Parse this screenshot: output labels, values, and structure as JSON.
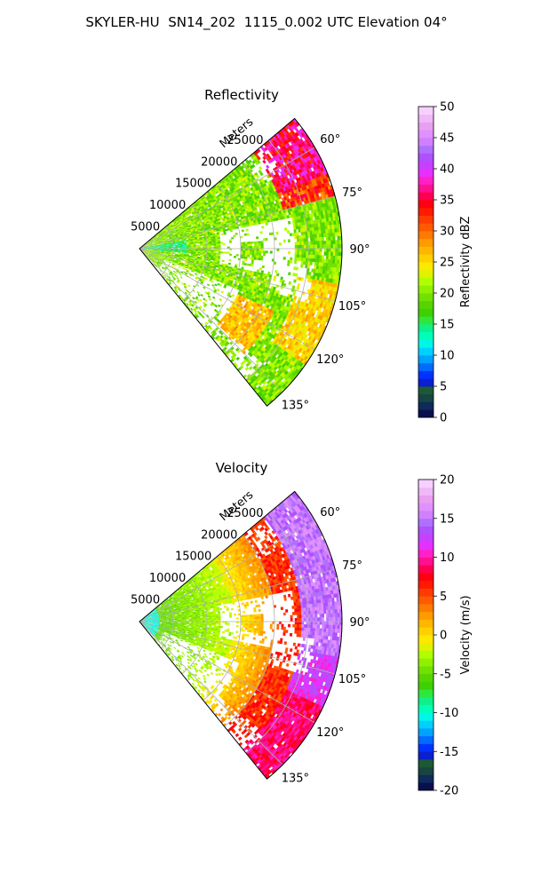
{
  "header": {
    "title": "SKYLER-HU  SN14_202  1115_0.002 UTC Elevation 04°"
  },
  "chart_data": [
    {
      "type": "heatmap",
      "subtype": "radar-sector-ppi",
      "title": "Reflectivity",
      "range_label": "Meters",
      "range_ticks": [
        5000,
        10000,
        15000,
        20000,
        25000
      ],
      "range_tick_labels": [
        "5000",
        "10000",
        "15000",
        "20000",
        "25000"
      ],
      "range_max": 30000,
      "azimuth_range_deg": [
        50,
        141
      ],
      "azimuth_ticks_deg": [
        60,
        75,
        90,
        105,
        120,
        135
      ],
      "azimuth_tick_labels": [
        "60°",
        "75°",
        "90°",
        "105°",
        "120°",
        "135°"
      ],
      "grid": true,
      "colorbar": {
        "label": "Reflectivity dBZ",
        "min": 0,
        "max": 50,
        "ticks": [
          0,
          5,
          10,
          15,
          20,
          25,
          30,
          35,
          40,
          45,
          50
        ],
        "tick_labels": [
          "0",
          "5",
          "10",
          "15",
          "20",
          "25",
          "30",
          "35",
          "40",
          "45",
          "50"
        ],
        "colors": [
          "#08114e",
          "#0f2a5c",
          "#17453f",
          "#1c5a36",
          "#0a1fd0",
          "#0032ff",
          "#006bff",
          "#00a2ff",
          "#00d0ff",
          "#00f7e8",
          "#00ffb8",
          "#10f08a",
          "#2fe63c",
          "#3ed000",
          "#55d400",
          "#72e000",
          "#8ff000",
          "#b0ff00",
          "#e0f200",
          "#ffe800",
          "#ffd000",
          "#ffb600",
          "#ff9a00",
          "#ff7a00",
          "#ff5a00",
          "#ff3c00",
          "#ff1a00",
          "#ff0010",
          "#ff0050",
          "#ff1090",
          "#ff20c8",
          "#e630ff",
          "#c840ff",
          "#b050ff",
          "#b070ff",
          "#d080ff",
          "#e090ff",
          "#e8a0f0",
          "#f0b8f8",
          "#f8d0ff"
        ]
      },
      "field_description": "mostly 15-25 dBZ echoes with a 30-40 dBZ core near 60-70° azimuth far range; missing data gaps near 80-100° mid range"
    },
    {
      "type": "heatmap",
      "subtype": "radar-sector-ppi",
      "title": "Velocity",
      "range_label": "Meters",
      "range_ticks": [
        5000,
        10000,
        15000,
        20000,
        25000
      ],
      "range_tick_labels": [
        "5000",
        "10000",
        "15000",
        "20000",
        "25000"
      ],
      "range_max": 30000,
      "azimuth_range_deg": [
        50,
        141
      ],
      "azimuth_ticks_deg": [
        60,
        75,
        90,
        105,
        120,
        135
      ],
      "azimuth_tick_labels": [
        "60°",
        "75°",
        "90°",
        "105°",
        "120°",
        "135°"
      ],
      "grid": true,
      "colorbar": {
        "label": "Velocity (m/s)",
        "min": -20,
        "max": 20,
        "ticks": [
          -20,
          -15,
          -10,
          -5,
          0,
          5,
          10,
          15,
          20
        ],
        "tick_labels": [
          "-20",
          "-15",
          "-10",
          "-5",
          "0",
          "5",
          "10",
          "15",
          "20"
        ],
        "colors": [
          "#08114e",
          "#0f2a5c",
          "#17453f",
          "#1c5a36",
          "#0a1fd0",
          "#0032ff",
          "#006bff",
          "#00a2ff",
          "#00d0ff",
          "#00f7e8",
          "#00ffb8",
          "#10f08a",
          "#2fe63c",
          "#3ed000",
          "#55d400",
          "#72e000",
          "#8ff000",
          "#b0ff00",
          "#e0f200",
          "#ffe800",
          "#ffd000",
          "#ffb600",
          "#ff9a00",
          "#ff7a00",
          "#ff5a00",
          "#ff3c00",
          "#ff1a00",
          "#ff0010",
          "#ff0050",
          "#ff1090",
          "#ff20c8",
          "#e630ff",
          "#c840ff",
          "#b050ff",
          "#b070ff",
          "#d080ff",
          "#e090ff",
          "#e8a0f0",
          "#f0b8f8",
          "#f8d0ff"
        ]
      },
      "field_description": "about -10 m/s near radar, -5 to 0 m/s mid range, 10 to 20 m/s at far range; missing data gaps near 80-100° mid range"
    }
  ]
}
